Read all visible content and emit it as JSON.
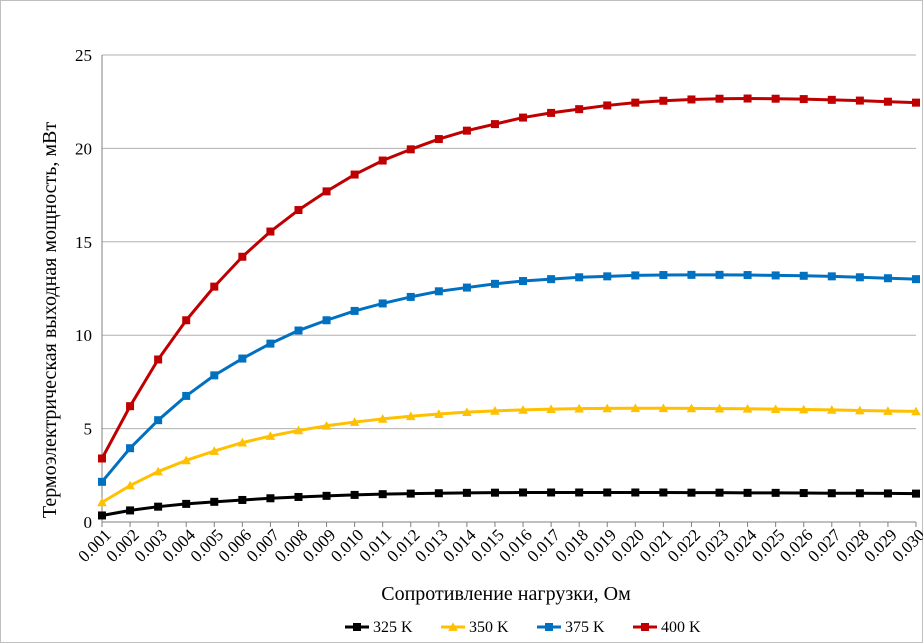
{
  "chart_data": {
    "type": "line",
    "title": "",
    "xlabel": "Сопротивление нагрузки, Ом",
    "ylabel": "Термоэлектрическая выходная мощность, мВт",
    "ylim": [
      0,
      25
    ],
    "yticks": [
      "0",
      "5",
      "10",
      "15",
      "20",
      "25"
    ],
    "grid": "horizontal",
    "legend_position": "bottom",
    "categories": [
      "0.001",
      "0.002",
      "0.003",
      "0.004",
      "0.005",
      "0.006",
      "0.007",
      "0.008",
      "0.009",
      "0.010",
      "0.011",
      "0.012",
      "0.013",
      "0.014",
      "0.015",
      "0.016",
      "0.017",
      "0.018",
      "0.019",
      "0.020",
      "0.021",
      "0.022",
      "0.023",
      "0.024",
      "0.025",
      "0.026",
      "0.027",
      "0.028",
      "0.029",
      "0.030"
    ],
    "series": [
      {
        "name": "325 K",
        "color": "#000000",
        "marker": "square",
        "values": [
          0.35,
          0.62,
          0.82,
          0.97,
          1.08,
          1.18,
          1.27,
          1.34,
          1.4,
          1.45,
          1.49,
          1.52,
          1.54,
          1.56,
          1.57,
          1.58,
          1.58,
          1.58,
          1.58,
          1.58,
          1.58,
          1.57,
          1.57,
          1.56,
          1.56,
          1.55,
          1.54,
          1.54,
          1.53,
          1.52
        ]
      },
      {
        "name": "350 K",
        "color": "#ffc000",
        "marker": "triangle",
        "values": [
          1.05,
          1.95,
          2.7,
          3.3,
          3.8,
          4.25,
          4.6,
          4.9,
          5.15,
          5.35,
          5.52,
          5.66,
          5.78,
          5.88,
          5.95,
          6.0,
          6.04,
          6.07,
          6.08,
          6.09,
          6.09,
          6.08,
          6.07,
          6.06,
          6.04,
          6.02,
          6.0,
          5.97,
          5.94,
          5.92
        ]
      },
      {
        "name": "375 K",
        "color": "#0070c0",
        "marker": "square",
        "values": [
          2.15,
          3.95,
          5.45,
          6.75,
          7.85,
          8.75,
          9.55,
          10.25,
          10.8,
          11.3,
          11.7,
          12.05,
          12.35,
          12.55,
          12.75,
          12.9,
          13.0,
          13.1,
          13.15,
          13.2,
          13.22,
          13.23,
          13.23,
          13.22,
          13.2,
          13.18,
          13.15,
          13.1,
          13.05,
          13.0
        ]
      },
      {
        "name": "400 K",
        "color": "#c00000",
        "marker": "square",
        "values": [
          3.4,
          6.2,
          8.7,
          10.8,
          12.6,
          14.2,
          15.55,
          16.7,
          17.7,
          18.6,
          19.35,
          19.95,
          20.5,
          20.95,
          21.3,
          21.65,
          21.9,
          22.1,
          22.3,
          22.45,
          22.55,
          22.62,
          22.66,
          22.67,
          22.66,
          22.64,
          22.6,
          22.56,
          22.5,
          22.45
        ]
      }
    ]
  }
}
